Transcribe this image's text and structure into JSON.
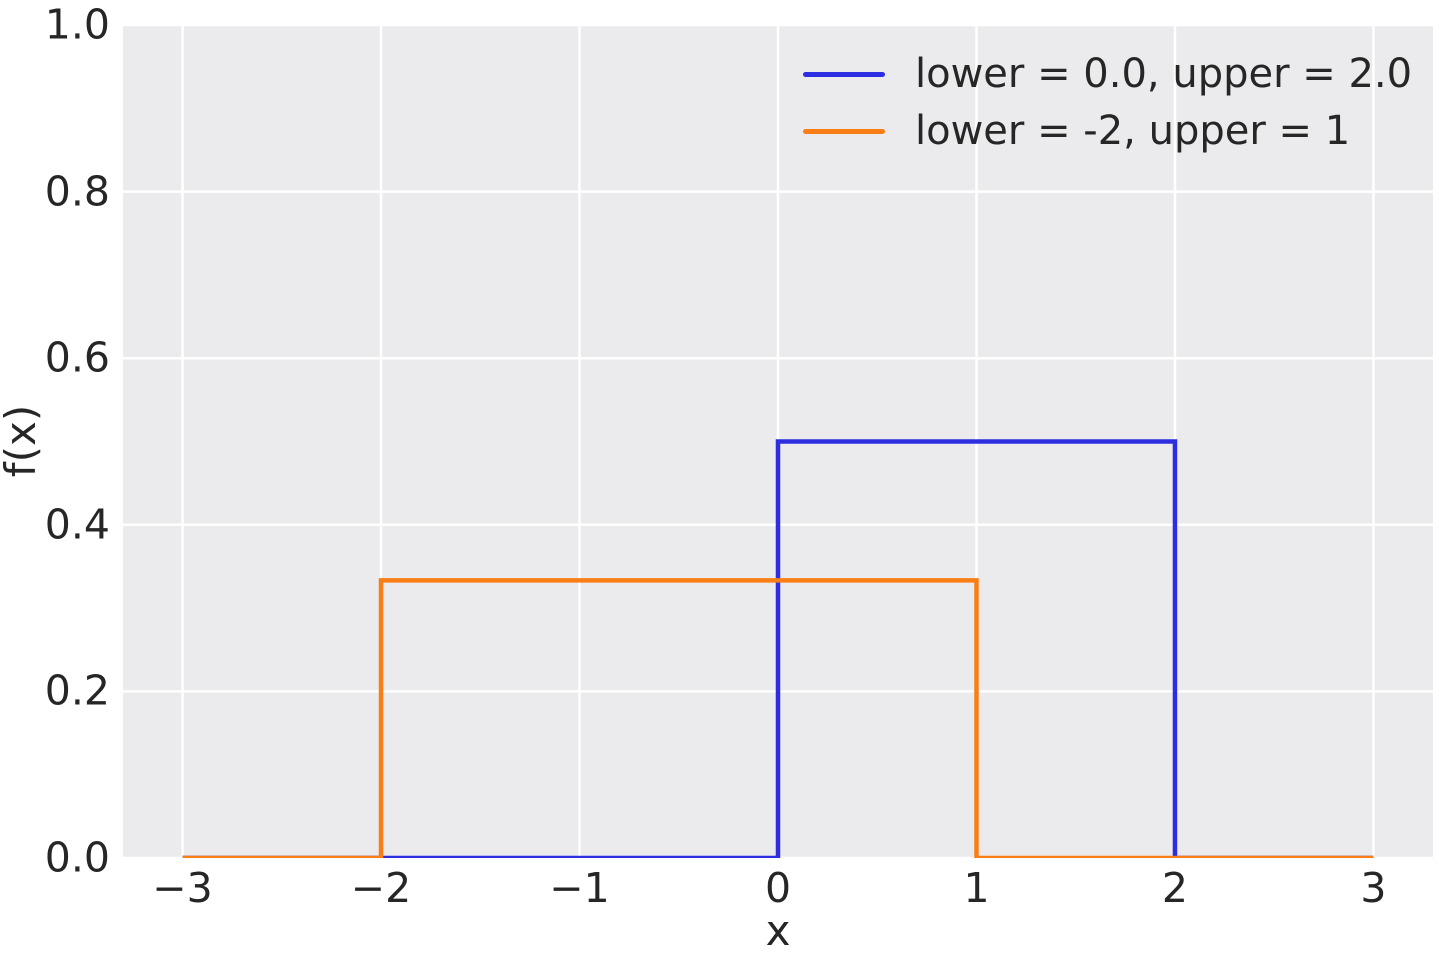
{
  "figure": {
    "background": "#ffffff",
    "axes_background": "#ebebee",
    "grid_color": "#ffffff",
    "text_color": "#262626"
  },
  "axes": {
    "xlabel": "x",
    "ylabel": "f(x)",
    "x_tick_labels": [
      "−3",
      "−2",
      "−1",
      "0",
      "1",
      "2",
      "3"
    ],
    "x_tick_values": [
      -3,
      -2,
      -1,
      0,
      1,
      2,
      3
    ],
    "y_tick_labels": [
      "0.0",
      "0.2",
      "0.4",
      "0.6",
      "0.8",
      "1.0"
    ],
    "y_tick_values": [
      0,
      0.2,
      0.4,
      0.6,
      0.8,
      1.0
    ]
  },
  "legend": {
    "position": "upper right",
    "entries": [
      {
        "label": "lower = 0.0, upper = 2.0",
        "color": "#2d2de1"
      },
      {
        "label": "lower = -2, upper = 1",
        "color": "#f97e16"
      }
    ]
  },
  "chart_data": {
    "type": "line",
    "title": "",
    "xlabel": "x",
    "ylabel": "f(x)",
    "xlim": [
      -3.3,
      3.3
    ],
    "ylim": [
      0,
      1
    ],
    "grid": true,
    "legend_position": "upper right",
    "series": [
      {
        "name": "lower = 0.0, upper = 2.0",
        "color": "#2d2de1",
        "x": [
          -3,
          0,
          0,
          2,
          2,
          3
        ],
        "y": [
          0,
          0,
          0.5,
          0.5,
          0,
          0
        ]
      },
      {
        "name": "lower = -2, upper = 1",
        "color": "#f97e16",
        "x": [
          -3,
          -2,
          -2,
          1,
          1,
          3
        ],
        "y": [
          0,
          0,
          0.3333,
          0.3333,
          0,
          0
        ]
      }
    ]
  }
}
